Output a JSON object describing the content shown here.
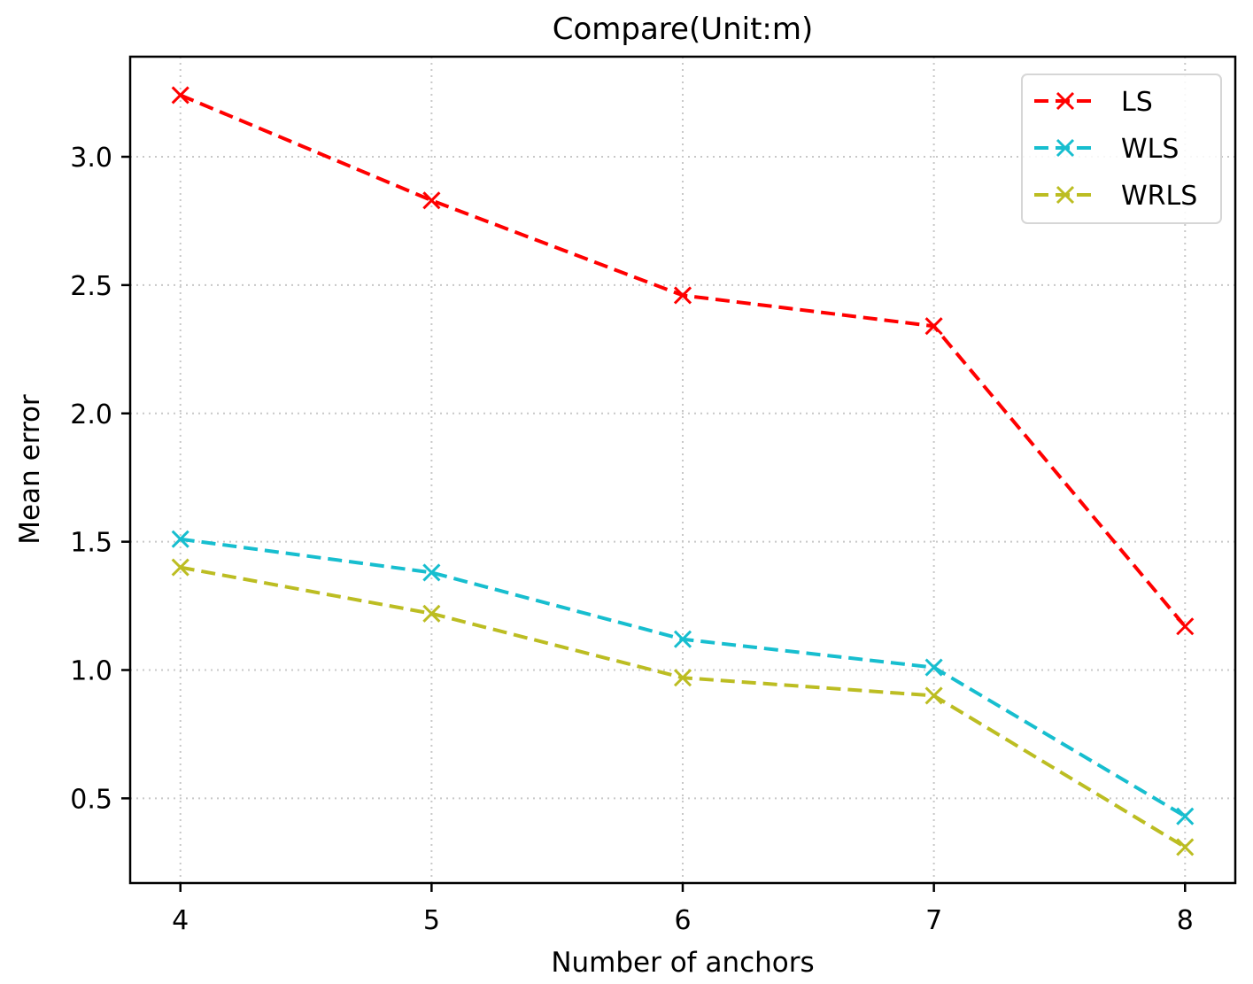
{
  "chart_data": {
    "type": "line",
    "title": "Compare(Unit:m)",
    "xlabel": "Number of anchors",
    "ylabel": "Mean error",
    "x": [
      4,
      5,
      6,
      7,
      8
    ],
    "x_ticks": [
      "4",
      "5",
      "6",
      "7",
      "8"
    ],
    "y_ticks": [
      0.5,
      1.0,
      1.5,
      2.0,
      2.5,
      3.0
    ],
    "y_tick_labels": [
      "0.5",
      "1.0",
      "1.5",
      "2.0",
      "2.5",
      "3.0"
    ],
    "xlim": [
      3.8,
      8.2
    ],
    "ylim": [
      0.17,
      3.39
    ],
    "grid": true,
    "legend_position": "top-right",
    "marker": "x",
    "line_style": "dashed",
    "series": [
      {
        "name": "LS",
        "color": "#ff0000",
        "values": [
          3.24,
          2.83,
          2.46,
          2.34,
          1.17
        ]
      },
      {
        "name": "WLS",
        "color": "#17becf",
        "values": [
          1.51,
          1.38,
          1.12,
          1.01,
          0.43
        ]
      },
      {
        "name": "WRLS",
        "color": "#bcbd22",
        "values": [
          1.4,
          1.22,
          0.97,
          0.9,
          0.31
        ]
      }
    ]
  }
}
